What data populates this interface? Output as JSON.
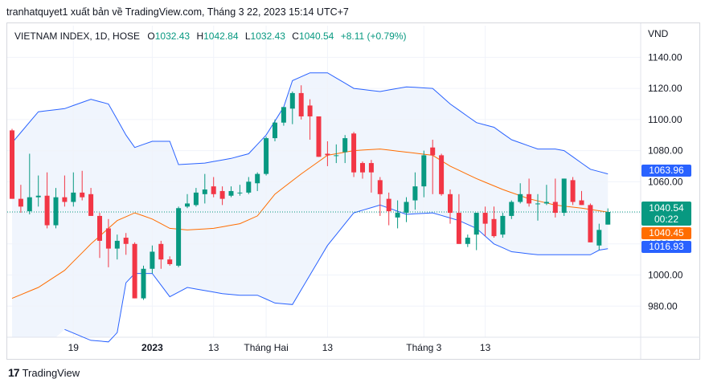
{
  "header": {
    "text": "tranhatquyet1 xuất bản về TradingView.com, Tháng 3 22, 2023 15:14 UTC+7"
  },
  "legend": {
    "symbol": "VIETNAM INDEX, 1D, HOSE",
    "o_label": "O",
    "o_value": "1032.43",
    "h_label": "H",
    "h_value": "1042.84",
    "l_label": "L",
    "l_value": "1032.43",
    "c_label": "C",
    "c_value": "1040.54",
    "change": "+8.11 (+0.79%)"
  },
  "currency": "VND",
  "footer": {
    "brand": "TradingView"
  },
  "colors": {
    "up": "#089981",
    "down": "#f23645",
    "bb_band": "#2962ff",
    "bb_basis": "#ff6d00",
    "bb_fill": "#e3ecfb"
  },
  "chart_data": {
    "type": "candlestick",
    "ylim": [
      960,
      1150
    ],
    "y_ticks": [
      "1140.00",
      "1120.00",
      "1100.00",
      "1080.00",
      "1060.00",
      "1040.00",
      "1020.00",
      "1000.00",
      "980.00"
    ],
    "x_ticks": [
      {
        "label": "19",
        "index": 7
      },
      {
        "label": "2023",
        "index": 16
      },
      {
        "label": "13",
        "index": 23
      },
      {
        "label": "Tháng Hai",
        "index": 29
      },
      {
        "label": "13",
        "index": 36
      },
      {
        "label": "Tháng 3",
        "index": 47
      },
      {
        "label": "13",
        "index": 54
      }
    ],
    "candles": [
      {
        "o": 1093,
        "h": 1094,
        "l": 1049,
        "c": 1049
      },
      {
        "o": 1049,
        "h": 1058,
        "l": 1040,
        "c": 1044
      },
      {
        "o": 1041,
        "h": 1078,
        "l": 1039,
        "c": 1050
      },
      {
        "o": 1050,
        "h": 1064,
        "l": 1044,
        "c": 1051
      },
      {
        "o": 1051,
        "h": 1066,
        "l": 1030,
        "c": 1032
      },
      {
        "o": 1032,
        "h": 1056,
        "l": 1030,
        "c": 1050
      },
      {
        "o": 1050,
        "h": 1064,
        "l": 1044,
        "c": 1047
      },
      {
        "o": 1047,
        "h": 1066,
        "l": 1044,
        "c": 1053
      },
      {
        "o": 1053,
        "h": 1067,
        "l": 1048,
        "c": 1050
      },
      {
        "o": 1052,
        "h": 1056,
        "l": 1038,
        "c": 1038
      },
      {
        "o": 1038,
        "h": 1040,
        "l": 1011,
        "c": 1022
      },
      {
        "o": 1030,
        "h": 1036,
        "l": 1005,
        "c": 1017
      },
      {
        "o": 1017,
        "h": 1026,
        "l": 1010,
        "c": 1022
      },
      {
        "o": 1024,
        "h": 1027,
        "l": 1013,
        "c": 1020
      },
      {
        "o": 1020,
        "h": 1021,
        "l": 985,
        "c": 985
      },
      {
        "o": 985,
        "h": 1006,
        "l": 984,
        "c": 1004
      },
      {
        "o": 1004,
        "h": 1019,
        "l": 1001,
        "c": 1015
      },
      {
        "o": 1020,
        "h": 1022,
        "l": 1004,
        "c": 1010
      },
      {
        "o": 1010,
        "h": 1012,
        "l": 1006,
        "c": 1007
      },
      {
        "o": 1006,
        "h": 1044,
        "l": 1005,
        "c": 1043
      },
      {
        "o": 1044,
        "h": 1052,
        "l": 1043,
        "c": 1046
      },
      {
        "o": 1045,
        "h": 1056,
        "l": 1044,
        "c": 1053
      },
      {
        "o": 1052,
        "h": 1065,
        "l": 1046,
        "c": 1055
      },
      {
        "o": 1057,
        "h": 1063,
        "l": 1050,
        "c": 1052
      },
      {
        "o": 1054,
        "h": 1057,
        "l": 1045,
        "c": 1049
      },
      {
        "o": 1051,
        "h": 1057,
        "l": 1050,
        "c": 1054
      },
      {
        "o": 1053,
        "h": 1058,
        "l": 1051,
        "c": 1053
      },
      {
        "o": 1053,
        "h": 1063,
        "l": 1052,
        "c": 1060
      },
      {
        "o": 1059,
        "h": 1066,
        "l": 1054,
        "c": 1065
      },
      {
        "o": 1065,
        "h": 1089,
        "l": 1064,
        "c": 1088
      },
      {
        "o": 1088,
        "h": 1100,
        "l": 1086,
        "c": 1098
      },
      {
        "o": 1098,
        "h": 1108,
        "l": 1096,
        "c": 1108
      },
      {
        "o": 1107,
        "h": 1118,
        "l": 1097,
        "c": 1117
      },
      {
        "o": 1117,
        "h": 1122,
        "l": 1100,
        "c": 1102
      },
      {
        "o": 1109,
        "h": 1113,
        "l": 1087,
        "c": 1102
      },
      {
        "o": 1102,
        "h": 1102,
        "l": 1076,
        "c": 1076
      },
      {
        "o": 1078,
        "h": 1086,
        "l": 1070,
        "c": 1077
      },
      {
        "o": 1077,
        "h": 1084,
        "l": 1072,
        "c": 1077
      },
      {
        "o": 1079,
        "h": 1090,
        "l": 1072,
        "c": 1088
      },
      {
        "o": 1091,
        "h": 1092,
        "l": 1063,
        "c": 1066
      },
      {
        "o": 1072,
        "h": 1073,
        "l": 1062,
        "c": 1066
      },
      {
        "o": 1072,
        "h": 1074,
        "l": 1053,
        "c": 1066
      },
      {
        "o": 1061,
        "h": 1063,
        "l": 1038,
        "c": 1052
      },
      {
        "o": 1049,
        "h": 1053,
        "l": 1032,
        "c": 1041
      },
      {
        "o": 1037,
        "h": 1048,
        "l": 1030,
        "c": 1040
      },
      {
        "o": 1040,
        "h": 1050,
        "l": 1034,
        "c": 1047
      },
      {
        "o": 1048,
        "h": 1066,
        "l": 1042,
        "c": 1057
      },
      {
        "o": 1057,
        "h": 1080,
        "l": 1050,
        "c": 1077
      },
      {
        "o": 1082,
        "h": 1087,
        "l": 1052,
        "c": 1077
      },
      {
        "o": 1077,
        "h": 1078,
        "l": 1051,
        "c": 1052
      },
      {
        "o": 1052,
        "h": 1055,
        "l": 1033,
        "c": 1040
      },
      {
        "o": 1040,
        "h": 1052,
        "l": 1020,
        "c": 1020
      },
      {
        "o": 1020,
        "h": 1026,
        "l": 1018,
        "c": 1024
      },
      {
        "o": 1026,
        "h": 1040,
        "l": 1016,
        "c": 1040
      },
      {
        "o": 1040,
        "h": 1044,
        "l": 1025,
        "c": 1033
      },
      {
        "o": 1036,
        "h": 1044,
        "l": 1024,
        "c": 1025
      },
      {
        "o": 1026,
        "h": 1040,
        "l": 1024,
        "c": 1038
      },
      {
        "o": 1038,
        "h": 1048,
        "l": 1036,
        "c": 1047
      },
      {
        "o": 1047,
        "h": 1059,
        "l": 1046,
        "c": 1052
      },
      {
        "o": 1052,
        "h": 1062,
        "l": 1044,
        "c": 1046
      },
      {
        "o": 1046,
        "h": 1052,
        "l": 1035,
        "c": 1046
      },
      {
        "o": 1046,
        "h": 1058,
        "l": 1045,
        "c": 1047
      },
      {
        "o": 1047,
        "h": 1062,
        "l": 1037,
        "c": 1040
      },
      {
        "o": 1040,
        "h": 1062,
        "l": 1038,
        "c": 1062
      },
      {
        "o": 1061,
        "h": 1063,
        "l": 1045,
        "c": 1047
      },
      {
        "o": 1048,
        "h": 1054,
        "l": 1045,
        "c": 1045
      },
      {
        "o": 1045,
        "h": 1046,
        "l": 1021,
        "c": 1021
      },
      {
        "o": 1019,
        "h": 1033,
        "l": 1016,
        "c": 1029
      },
      {
        "o": 1032.43,
        "h": 1042.84,
        "l": 1032.43,
        "c": 1040.54
      }
    ],
    "bb_upper": [
      {
        "i": 0,
        "v": 1085
      },
      {
        "i": 3,
        "v": 1105
      },
      {
        "i": 6,
        "v": 1107
      },
      {
        "i": 9,
        "v": 1113
      },
      {
        "i": 11,
        "v": 1110
      },
      {
        "i": 13,
        "v": 1090
      },
      {
        "i": 14,
        "v": 1082
      },
      {
        "i": 16,
        "v": 1086
      },
      {
        "i": 18,
        "v": 1086
      },
      {
        "i": 19,
        "v": 1071
      },
      {
        "i": 22,
        "v": 1072
      },
      {
        "i": 25,
        "v": 1075
      },
      {
        "i": 27,
        "v": 1078
      },
      {
        "i": 29,
        "v": 1090
      },
      {
        "i": 31,
        "v": 1108
      },
      {
        "i": 32,
        "v": 1125
      },
      {
        "i": 34,
        "v": 1130
      },
      {
        "i": 36,
        "v": 1130
      },
      {
        "i": 39,
        "v": 1120
      },
      {
        "i": 42,
        "v": 1118
      },
      {
        "i": 45,
        "v": 1121
      },
      {
        "i": 48,
        "v": 1120
      },
      {
        "i": 50,
        "v": 1110
      },
      {
        "i": 53,
        "v": 1098
      },
      {
        "i": 55,
        "v": 1095
      },
      {
        "i": 57,
        "v": 1087
      },
      {
        "i": 60,
        "v": 1081
      },
      {
        "i": 62,
        "v": 1081
      },
      {
        "i": 63,
        "v": 1080
      },
      {
        "i": 66,
        "v": 1068
      },
      {
        "i": 68,
        "v": 1065
      }
    ],
    "bb_basis": [
      {
        "i": 0,
        "v": 985
      },
      {
        "i": 3,
        "v": 992
      },
      {
        "i": 6,
        "v": 1003
      },
      {
        "i": 9,
        "v": 1020
      },
      {
        "i": 12,
        "v": 1035
      },
      {
        "i": 14,
        "v": 1040
      },
      {
        "i": 16,
        "v": 1036
      },
      {
        "i": 18,
        "v": 1030
      },
      {
        "i": 20,
        "v": 1029
      },
      {
        "i": 23,
        "v": 1030
      },
      {
        "i": 26,
        "v": 1033
      },
      {
        "i": 28,
        "v": 1038
      },
      {
        "i": 30,
        "v": 1052
      },
      {
        "i": 33,
        "v": 1065
      },
      {
        "i": 36,
        "v": 1077
      },
      {
        "i": 39,
        "v": 1080
      },
      {
        "i": 42,
        "v": 1081
      },
      {
        "i": 45,
        "v": 1079
      },
      {
        "i": 48,
        "v": 1077
      },
      {
        "i": 50,
        "v": 1070
      },
      {
        "i": 53,
        "v": 1062
      },
      {
        "i": 56,
        "v": 1055
      },
      {
        "i": 59,
        "v": 1049
      },
      {
        "i": 62,
        "v": 1045
      },
      {
        "i": 65,
        "v": 1043
      },
      {
        "i": 68,
        "v": 1040.45
      }
    ],
    "bb_lower": [
      {
        "i": 6,
        "v": 965
      },
      {
        "i": 9,
        "v": 958
      },
      {
        "i": 11,
        "v": 957
      },
      {
        "i": 12,
        "v": 963
      },
      {
        "i": 13,
        "v": 995
      },
      {
        "i": 14,
        "v": 1001
      },
      {
        "i": 16,
        "v": 1001
      },
      {
        "i": 18,
        "v": 986
      },
      {
        "i": 20,
        "v": 992
      },
      {
        "i": 24,
        "v": 988
      },
      {
        "i": 26,
        "v": 987
      },
      {
        "i": 28,
        "v": 987
      },
      {
        "i": 30,
        "v": 982
      },
      {
        "i": 32,
        "v": 981
      },
      {
        "i": 34,
        "v": 1000
      },
      {
        "i": 36,
        "v": 1019
      },
      {
        "i": 39,
        "v": 1040
      },
      {
        "i": 42,
        "v": 1045
      },
      {
        "i": 45,
        "v": 1039
      },
      {
        "i": 48,
        "v": 1040
      },
      {
        "i": 51,
        "v": 1035
      },
      {
        "i": 53,
        "v": 1030
      },
      {
        "i": 55,
        "v": 1020
      },
      {
        "i": 57,
        "v": 1015
      },
      {
        "i": 60,
        "v": 1013
      },
      {
        "i": 63,
        "v": 1013
      },
      {
        "i": 66,
        "v": 1013
      },
      {
        "i": 67,
        "v": 1016
      },
      {
        "i": 68,
        "v": 1016.93
      }
    ],
    "labels": {
      "bb_upper": "1063.96",
      "last_close": "1040.54",
      "countdown": "00:22",
      "bb_basis": "1040.45",
      "bb_lower": "1016.93"
    },
    "last_close_value": 1040.54
  }
}
